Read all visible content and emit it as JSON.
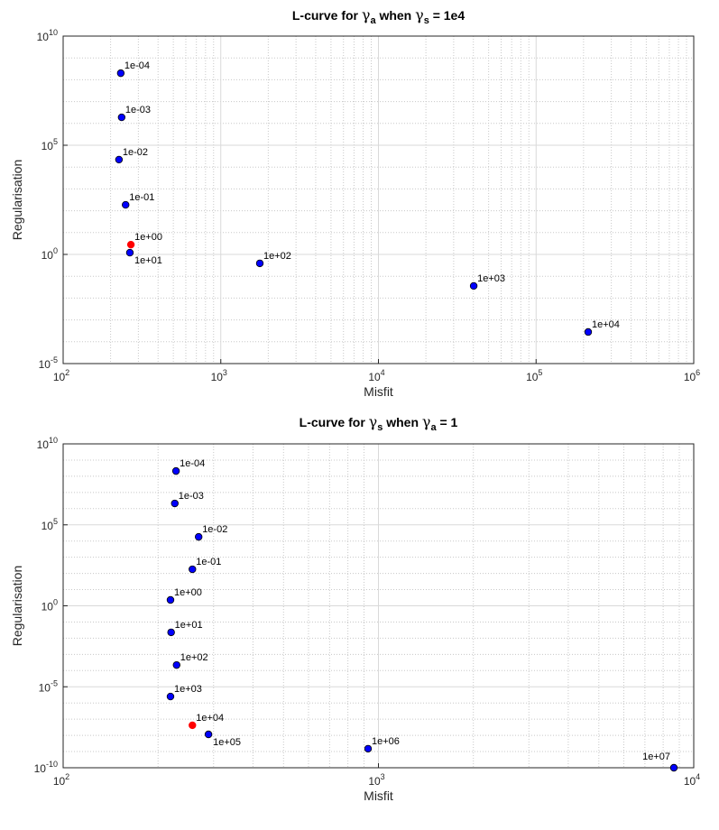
{
  "colors": {
    "point": "#0000ff",
    "selected": "#ff0000",
    "edge": "#000000",
    "grid": "#d9d9d9",
    "axis": "#262626"
  },
  "chart_data": [
    {
      "type": "scatter",
      "title": {
        "prefix": "L-curve for ",
        "sym1": "γ",
        "sub1": "a",
        "mid": " when ",
        "sym2": "γ",
        "sub2": "s",
        "suffix": " = 1e4"
      },
      "xlabel": "Misfit",
      "ylabel": "Regularisation",
      "xscale": "log",
      "yscale": "log",
      "xlim": [
        100,
        1000000
      ],
      "ylim": [
        1e-05,
        10000000000.0
      ],
      "tick_base": "10",
      "xtick_exponents": [
        "2",
        "3",
        "4",
        "5",
        "6"
      ],
      "ytick_exponents": [
        "-5",
        "0",
        "5",
        "10"
      ],
      "grid": true,
      "points": [
        {
          "label": "1e-04",
          "x": 232,
          "y": 200000000.0,
          "selected": false,
          "label_pos": "NE"
        },
        {
          "label": "1e-03",
          "x": 235,
          "y": 1900000.0,
          "selected": false,
          "label_pos": "NE"
        },
        {
          "label": "1e-02",
          "x": 226,
          "y": 22000.0,
          "selected": false,
          "label_pos": "NE"
        },
        {
          "label": "1e-01",
          "x": 249,
          "y": 186,
          "selected": false,
          "label_pos": "NE"
        },
        {
          "label": "1e+00",
          "x": 269,
          "y": 2.8,
          "selected": true,
          "label_pos": "NE"
        },
        {
          "label": "1e+01",
          "x": 265,
          "y": 1.2,
          "selected": false,
          "label_pos": "SE"
        },
        {
          "label": "1e+02",
          "x": 1768,
          "y": 0.39,
          "selected": false,
          "label_pos": "NE"
        },
        {
          "label": "1e+03",
          "x": 40200,
          "y": 0.036,
          "selected": false,
          "label_pos": "NE"
        },
        {
          "label": "1e+04",
          "x": 214000,
          "y": 0.00028,
          "selected": false,
          "label_pos": "NE"
        }
      ]
    },
    {
      "type": "scatter",
      "title": {
        "prefix": "L-curve for ",
        "sym1": "γ",
        "sub1": "s",
        "mid": " when ",
        "sym2": "γ",
        "sub2": "a",
        "suffix": " = 1"
      },
      "xlabel": "Misfit",
      "ylabel": "Regularisation",
      "xscale": "log",
      "yscale": "log",
      "xlim": [
        100,
        10000
      ],
      "ylim": [
        1e-10,
        10000000000.0
      ],
      "tick_base": "10",
      "xtick_exponents": [
        "2",
        "3",
        "4"
      ],
      "ytick_exponents": [
        "-10",
        "-5",
        "0",
        "5",
        "10"
      ],
      "grid": true,
      "points": [
        {
          "label": "1e-04",
          "x": 228,
          "y": 210000000.0,
          "selected": false,
          "label_pos": "NE"
        },
        {
          "label": "1e-03",
          "x": 226,
          "y": 2100000.0,
          "selected": false,
          "label_pos": "NE"
        },
        {
          "label": "1e-02",
          "x": 269,
          "y": 18000.0,
          "selected": false,
          "label_pos": "NE"
        },
        {
          "label": "1e-01",
          "x": 257,
          "y": 180,
          "selected": false,
          "label_pos": "NE"
        },
        {
          "label": "1e+00",
          "x": 219,
          "y": 2.3,
          "selected": false,
          "label_pos": "NE"
        },
        {
          "label": "1e+01",
          "x": 220,
          "y": 0.023,
          "selected": false,
          "label_pos": "NE"
        },
        {
          "label": "1e+02",
          "x": 229,
          "y": 0.00022,
          "selected": false,
          "label_pos": "NE"
        },
        {
          "label": "1e+03",
          "x": 219,
          "y": 2.5e-06,
          "selected": false,
          "label_pos": "NE"
        },
        {
          "label": "1e+04",
          "x": 257,
          "y": 4.2e-08,
          "selected": true,
          "label_pos": "NE"
        },
        {
          "label": "1e+05",
          "x": 289,
          "y": 1.15e-08,
          "selected": false,
          "label_pos": "SE"
        },
        {
          "label": "1e+06",
          "x": 927,
          "y": 1.5e-09,
          "selected": false,
          "label_pos": "NE"
        },
        {
          "label": "1e+07",
          "x": 8650,
          "y": 1e-10,
          "selected": false,
          "label_pos": "NW"
        }
      ]
    }
  ]
}
